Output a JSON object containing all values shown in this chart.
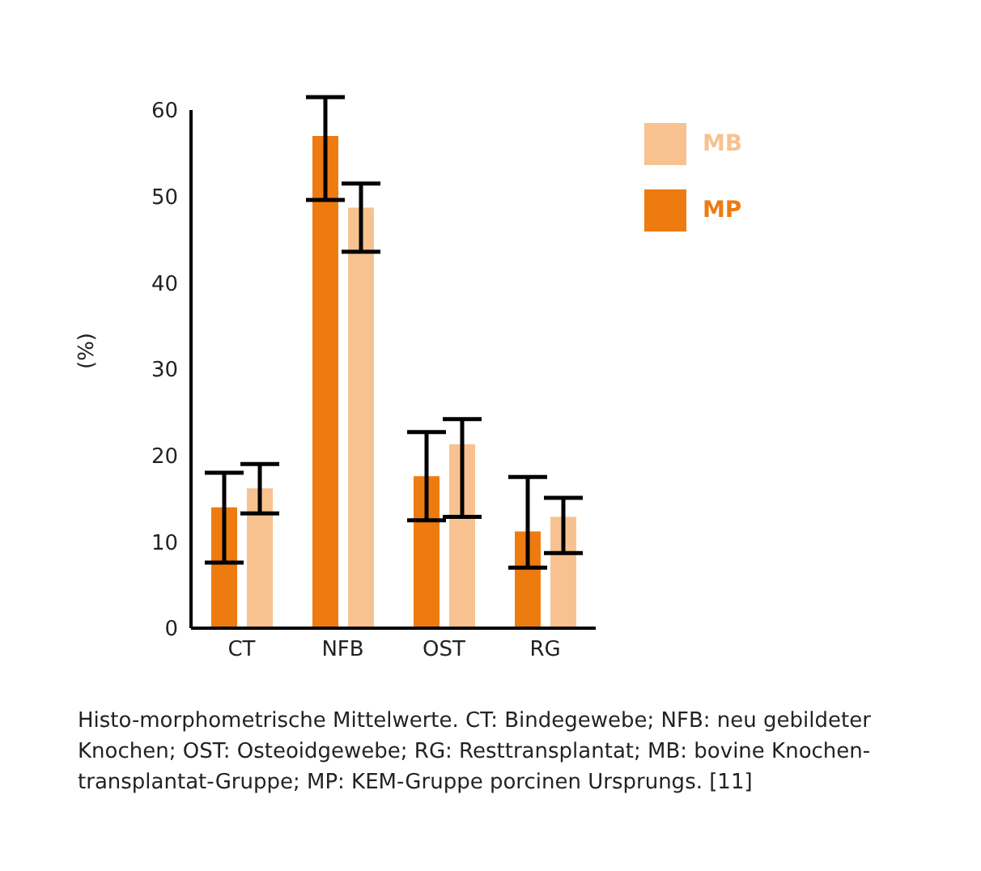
{
  "chart_data": {
    "type": "bar",
    "ylabel": "(%)",
    "categories": [
      "CT",
      "NFB",
      "OST",
      "RG"
    ],
    "series": [
      {
        "name": "MP",
        "color": "#ee7b10",
        "values": [
          14.0,
          57.0,
          17.6,
          11.2
        ],
        "errors": [
          [
            7.6,
            18.0
          ],
          [
            49.6,
            61.5
          ],
          [
            12.5,
            22.7
          ],
          [
            7.0,
            17.5
          ]
        ]
      },
      {
        "name": "MB",
        "color": "#f8c290",
        "values": [
          16.2,
          48.7,
          21.3,
          12.9
        ],
        "errors": [
          [
            13.3,
            19.0
          ],
          [
            43.6,
            51.5
          ],
          [
            12.9,
            24.2
          ],
          [
            8.7,
            15.1
          ]
        ]
      }
    ],
    "ylim": [
      0,
      60
    ],
    "yticks": [
      0,
      10,
      20,
      30,
      40,
      50,
      60
    ],
    "grid": false,
    "legend": "top right",
    "annotations": [
      "Histo-morphometrische Mittelwerte. CT: Bindegewebe; NFB: neu gebildeter Knochen; OST: Osteoidgewebe; RG: Resttransplantat; MB: bovine Knochen-transplantat-Gruppe; MP: KEM-Gruppe porcinen Ursprungs. [11]"
    ]
  }
}
